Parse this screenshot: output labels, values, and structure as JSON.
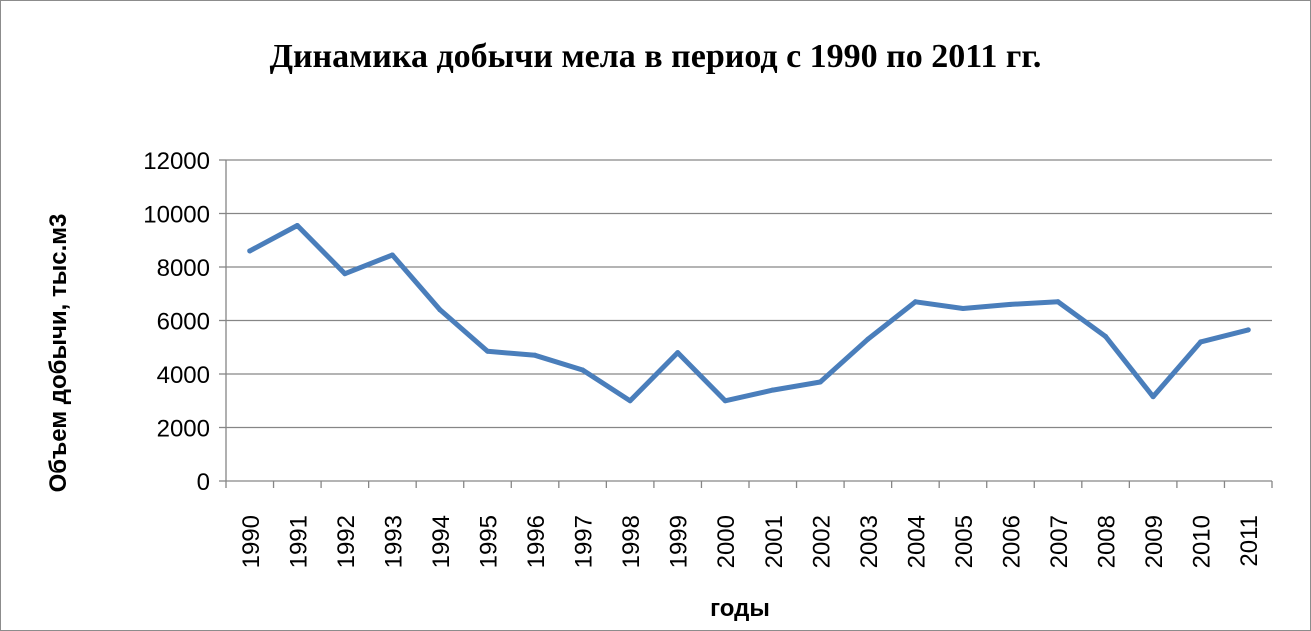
{
  "chart_data": {
    "type": "line",
    "title": "Динамика добычи мела в период с 1990 по 2011 гг.",
    "xlabel": "годы",
    "ylabel": "Объем добычи, тыс.м3",
    "ylim": [
      0,
      12000
    ],
    "yticks": [
      0,
      2000,
      4000,
      6000,
      8000,
      10000,
      12000
    ],
    "grid": true,
    "legend": "none",
    "color": "#4a7ebb",
    "categories": [
      "1990",
      "1991",
      "1992",
      "1993",
      "1994",
      "1995",
      "1996",
      "1997",
      "1998",
      "1999",
      "2000",
      "2001",
      "2002",
      "2003",
      "2004",
      "2005",
      "2006",
      "2007",
      "2008",
      "2009",
      "2010",
      "2011"
    ],
    "series": [
      {
        "values": [
          8600,
          9550,
          7750,
          8450,
          6400,
          4850,
          4700,
          4150,
          3000,
          4800,
          3000,
          3400,
          3700,
          5300,
          6700,
          6450,
          6600,
          6700,
          5400,
          3150,
          5200,
          5650
        ]
      }
    ]
  }
}
